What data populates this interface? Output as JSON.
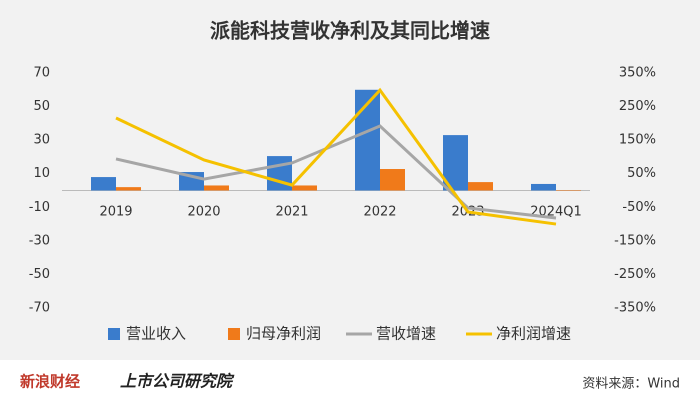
{
  "chart_data": {
    "type": "combo",
    "title": "派能科技营收净利及其同比增速",
    "categories": [
      "2019",
      "2020",
      "2021",
      "2022",
      "2023",
      "2024Q1"
    ],
    "series": [
      {
        "name": "营业收入",
        "type": "bar",
        "color": "#3a7ccc",
        "values": [
          8,
          11,
          20.5,
          60,
          33,
          3.9
        ]
      },
      {
        "name": "归母净利润",
        "type": "bar",
        "color": "#f07a1a",
        "values": [
          2,
          3,
          3,
          12.8,
          5,
          0.3
        ]
      },
      {
        "name": "营收增速",
        "type": "line",
        "axis": "y2",
        "color": "#a6a6a6",
        "values": [
          94,
          34,
          82,
          192,
          -52,
          -82
        ]
      },
      {
        "name": "净利润增速",
        "type": "line",
        "axis": "y2",
        "color": "#f5c100",
        "values": [
          216,
          91,
          16,
          299,
          -64,
          -100
        ]
      }
    ],
    "ylim": [
      -70,
      70
    ],
    "yticks": [
      70,
      50,
      30,
      10,
      -10,
      -30,
      -50,
      -70
    ],
    "y2lim": [
      -350,
      350
    ],
    "y2ticks": [
      {
        "value": 350,
        "label": "350%"
      },
      {
        "value": 250,
        "label": "250%"
      },
      {
        "value": 150,
        "label": "150%"
      },
      {
        "value": 50,
        "label": "50%"
      },
      {
        "value": -50,
        "label": "-50%"
      },
      {
        "value": -150,
        "label": "-150%"
      },
      {
        "value": -250,
        "label": "-250%"
      },
      {
        "value": -350,
        "label": "-350%"
      }
    ],
    "grid": false,
    "legend": "bottom",
    "brand": "新浪财经",
    "brand2": "上市公司研究院",
    "source": "资料来源：Wind"
  }
}
